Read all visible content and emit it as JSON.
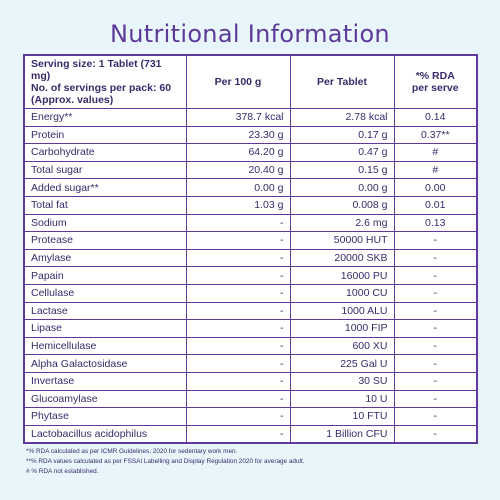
{
  "title": "Nutritional Information",
  "header": {
    "serving_line1": "Serving size: 1 Tablet (731 mg)",
    "serving_line2": "No. of servings per pack: 60",
    "serving_line3": "(Approx. values)",
    "per100": "Per 100 g",
    "per_tablet": "Per Tablet",
    "rda_line1": "*% RDA",
    "rda_line2": "per serve"
  },
  "rows": [
    {
      "name": "Energy**",
      "per100": "378.7 kcal",
      "tablet": "2.78 kcal",
      "rda": "0.14"
    },
    {
      "name": "Protein",
      "per100": "23.30 g",
      "tablet": "0.17 g",
      "rda": "0.37**"
    },
    {
      "name": "Carbohydrate",
      "per100": "64.20 g",
      "tablet": "0.47 g",
      "rda": "#"
    },
    {
      "name": "Total sugar",
      "per100": "20.40 g",
      "tablet": "0.15 g",
      "rda": "#"
    },
    {
      "name": "Added sugar**",
      "per100": "0.00 g",
      "tablet": "0.00 g",
      "rda": "0.00"
    },
    {
      "name": "Total fat",
      "per100": "1.03 g",
      "tablet": "0.008 g",
      "rda": "0.01"
    },
    {
      "name": "Sodium",
      "per100": "-",
      "tablet": "2.6 mg",
      "rda": "0.13"
    },
    {
      "name": "Protease",
      "per100": "-",
      "tablet": "50000 HUT",
      "rda": "-"
    },
    {
      "name": "Amylase",
      "per100": "-",
      "tablet": "20000 SKB",
      "rda": "-"
    },
    {
      "name": "Papain",
      "per100": "-",
      "tablet": "16000 PU",
      "rda": "-"
    },
    {
      "name": "Cellulase",
      "per100": "-",
      "tablet": "1000 CU",
      "rda": "-"
    },
    {
      "name": "Lactase",
      "per100": "-",
      "tablet": "1000 ALU",
      "rda": "-"
    },
    {
      "name": "Lipase",
      "per100": "-",
      "tablet": "1000 FIP",
      "rda": "-"
    },
    {
      "name": "Hemicellulase",
      "per100": "-",
      "tablet": "600 XU",
      "rda": "-"
    },
    {
      "name": "Alpha Galactosidase",
      "per100": "-",
      "tablet": "225 Gal U",
      "rda": "-"
    },
    {
      "name": "Invertase",
      "per100": "-",
      "tablet": "30 SU",
      "rda": "-"
    },
    {
      "name": "Glucoamylase",
      "per100": "-",
      "tablet": "10 U",
      "rda": "-"
    },
    {
      "name": "Phytase",
      "per100": "-",
      "tablet": "10 FTU",
      "rda": "-"
    },
    {
      "name": "Lactobacillus acidophilus",
      "per100": "-",
      "tablet": "1 Billion CFU",
      "rda": "-"
    }
  ],
  "notes": [
    "*% RDA calculated as per ICMR Guidelines, 2020 for sedentary work men.",
    "**% RDA values calculated as per FSSAI Labelling and Display Regulation 2020 for average adult.",
    "# % RDA not established."
  ]
}
